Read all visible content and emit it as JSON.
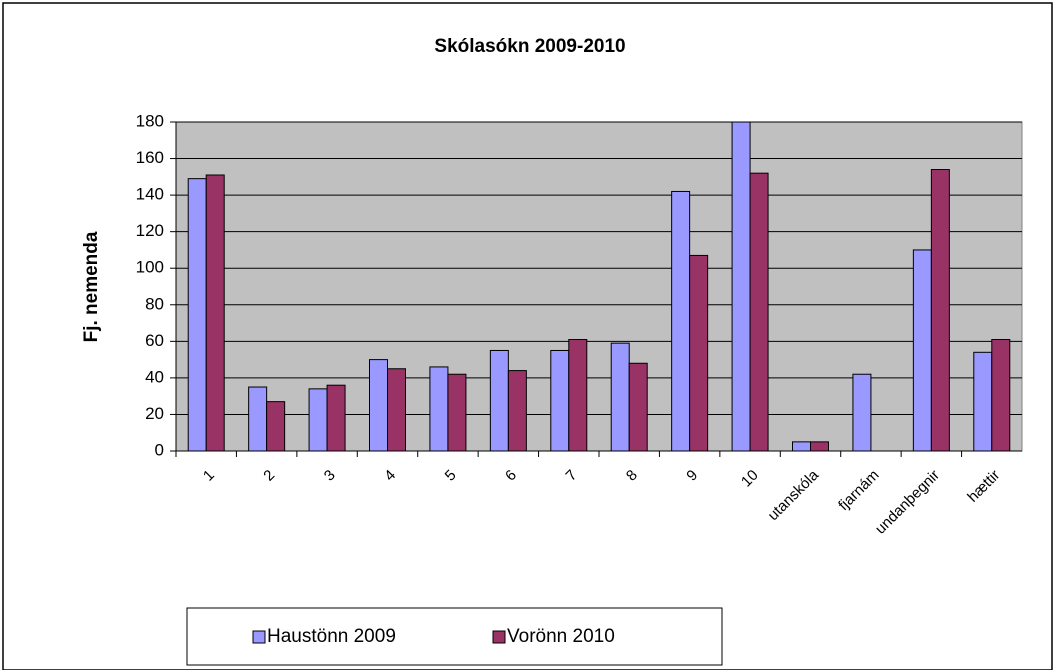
{
  "chart_data": {
    "type": "bar",
    "title": "Skólasókn 2009-2010",
    "y_label": "Fj. nemenda",
    "categories": [
      "1",
      "2",
      "3",
      "4",
      "5",
      "6",
      "7",
      "8",
      "9",
      "10",
      "utanskóla",
      "fjarnám",
      "undanþegnir",
      "hættir"
    ],
    "series": [
      {
        "name": "Haustönn 2009",
        "color": "#9999ff",
        "values": [
          149,
          35,
          34,
          50,
          46,
          55,
          55,
          59,
          142,
          180,
          5,
          42,
          110,
          54
        ]
      },
      {
        "name": "Vorönn 2010",
        "color": "#993366",
        "values": [
          151,
          27,
          36,
          45,
          42,
          44,
          61,
          48,
          107,
          152,
          5,
          0,
          154,
          61
        ]
      }
    ],
    "ylim": [
      0,
      180
    ],
    "yticks": [
      0,
      20,
      40,
      60,
      80,
      100,
      120,
      140,
      160,
      180
    ],
    "grid": true,
    "legend": "bottom"
  }
}
